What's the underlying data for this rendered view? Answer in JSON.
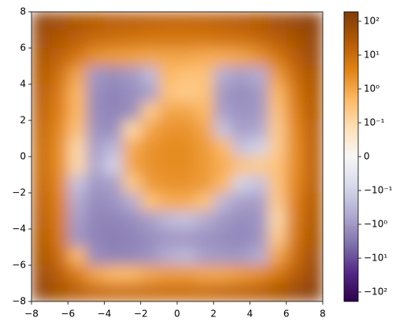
{
  "chart_data": {
    "type": "heatmap",
    "norm": "symlog",
    "linthresh": 0.1,
    "xlim": [
      -8,
      8
    ],
    "ylim": [
      -8,
      8
    ],
    "xticks": [
      {
        "value": -8,
        "label": "−8"
      },
      {
        "value": -6,
        "label": "−6"
      },
      {
        "value": -4,
        "label": "−4"
      },
      {
        "value": -2,
        "label": "−2"
      },
      0,
      2,
      4,
      6,
      8
    ],
    "yticks": [
      {
        "value": -8,
        "label": "−8"
      },
      {
        "value": -6,
        "label": "−6"
      },
      {
        "value": -4,
        "label": "−4"
      },
      {
        "value": -2,
        "label": "−2"
      },
      0,
      2,
      4,
      6,
      8
    ],
    "clim": [
      -190,
      190
    ],
    "cticks": [
      {
        "value": 100,
        "label": "10²"
      },
      {
        "value": 10,
        "label": "10¹"
      },
      {
        "value": 1,
        "label": "10⁰"
      },
      {
        "value": 0.1,
        "label": "10⁻¹"
      },
      0,
      {
        "value": -0.1,
        "label": "−10⁻¹"
      },
      {
        "value": -1,
        "label": "−10⁰"
      },
      {
        "value": -10,
        "label": "−10¹"
      },
      {
        "value": -100,
        "label": "−10²"
      }
    ],
    "colormap": [
      "#2d004b",
      "#542788",
      "#8073ac",
      "#b2abd2",
      "#d8daeb",
      "#f7f7f7",
      "#fee0b6",
      "#fdb863",
      "#e08214",
      "#b35806",
      "#7f3b08"
    ],
    "values": [
      [
        80,
        50,
        35,
        25,
        20,
        18,
        15,
        14,
        14,
        15,
        18,
        22,
        30,
        45,
        70,
        120
      ],
      [
        50,
        30,
        18,
        10,
        8,
        7,
        6,
        6,
        6,
        6,
        7,
        8,
        12,
        20,
        40,
        80
      ],
      [
        35,
        15,
        6,
        2,
        1.5,
        1.2,
        1,
        1,
        1,
        0.8,
        0.8,
        1,
        2,
        6,
        20,
        60
      ],
      [
        25,
        8,
        1,
        -1,
        -1.5,
        -1,
        -0.3,
        0.5,
        0.3,
        0.3,
        -0.5,
        -0.8,
        -0.5,
        1.5,
        10,
        40
      ],
      [
        20,
        5,
        0.5,
        -1.5,
        -2,
        -1.5,
        -0.8,
        0.3,
        0.2,
        0.3,
        -1,
        -1.5,
        -1,
        0.5,
        6,
        30
      ],
      [
        15,
        4,
        0.5,
        -1.5,
        -2,
        -1.5,
        0.2,
        1,
        1,
        0.5,
        -0.8,
        -1.2,
        -1,
        0.3,
        4,
        25
      ],
      [
        12,
        3,
        0.3,
        -1.2,
        -1.5,
        0.1,
        1,
        2,
        2,
        1,
        -0.2,
        -0.8,
        -0.6,
        0.2,
        3,
        20
      ],
      [
        10,
        2.5,
        0.1,
        -0.8,
        -0.3,
        0.8,
        2,
        2.5,
        2.5,
        1.5,
        0.5,
        -0.2,
        -0.1,
        0.2,
        2.5,
        18
      ],
      [
        10,
        2.5,
        0.1,
        -0.6,
        -0.1,
        1,
        2,
        2.5,
        2.5,
        1.5,
        0.8,
        0.3,
        0.2,
        0.3,
        2.5,
        18
      ],
      [
        12,
        3,
        -0.2,
        -1,
        -0.8,
        0.2,
        1.5,
        2,
        2,
        1.5,
        0.5,
        -0.1,
        -0.2,
        0.3,
        3,
        20
      ],
      [
        15,
        4,
        -0.5,
        -1.5,
        -1.2,
        -0.5,
        0.3,
        0.8,
        0.8,
        0.3,
        -0.3,
        -0.8,
        -0.8,
        0.2,
        4,
        25
      ],
      [
        20,
        5,
        -0.8,
        -2,
        -2,
        -1.5,
        -0.8,
        -0.3,
        -0.2,
        -0.5,
        -1,
        -1.5,
        -1.2,
        0.1,
        5,
        30
      ],
      [
        25,
        6,
        -1,
        -2,
        -2.5,
        -2,
        -1.5,
        -1,
        -1,
        -1.2,
        -1.5,
        -1.8,
        -1.2,
        0.2,
        6,
        40
      ],
      [
        35,
        10,
        0.5,
        -1.5,
        -2,
        -1.8,
        -1.2,
        -0.5,
        -0.3,
        -0.8,
        -1,
        -1,
        -0.5,
        1,
        10,
        50
      ],
      [
        50,
        20,
        5,
        1,
        0.5,
        0.5,
        1,
        1.5,
        1.5,
        1,
        1,
        1.5,
        2.5,
        6,
        20,
        70
      ],
      [
        80,
        40,
        20,
        12,
        10,
        10,
        10,
        10,
        10,
        10,
        12,
        15,
        20,
        35,
        60,
        110
      ]
    ]
  }
}
